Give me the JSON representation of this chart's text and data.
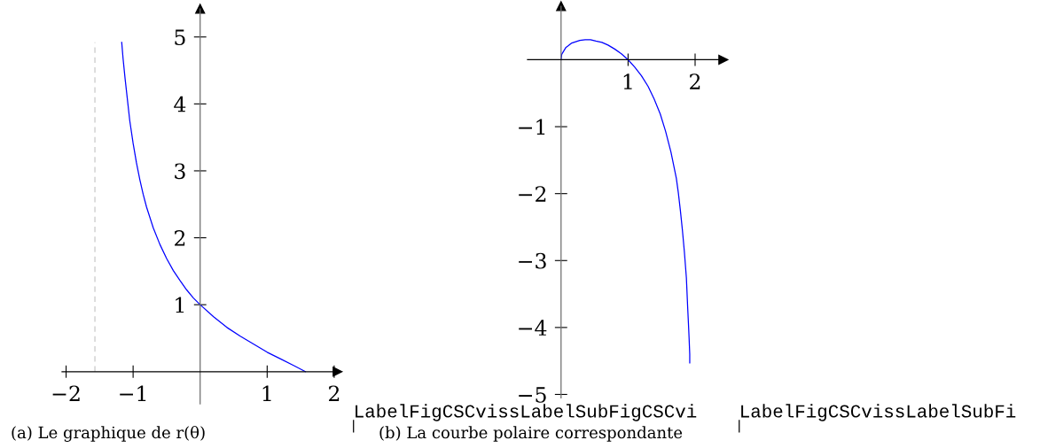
{
  "chart_data": [
    {
      "type": "line",
      "title": "(a) Le graphique de r(θ)",
      "annotations": [
        "LabelFigCSCvissLabelSubFigCSCvi"
      ],
      "x": [
        -1.17,
        -1.15,
        -1.12,
        -1.05,
        -1.0,
        -0.95,
        -0.9,
        -0.85,
        -0.8,
        -0.7,
        -0.6,
        -0.5,
        -0.4,
        -0.3,
        -0.2,
        -0.1,
        0,
        0.2,
        0.4,
        0.6,
        0.8,
        1.0,
        1.2,
        1.4,
        1.57
      ],
      "series": [
        {
          "color": "#0000ff",
          "values": [
            4.92,
            4.68,
            4.38,
            3.75,
            3.41,
            3.12,
            2.87,
            2.65,
            2.46,
            2.15,
            1.9,
            1.69,
            1.51,
            1.36,
            1.22,
            1.1,
            1.0,
            0.82,
            0.66,
            0.53,
            0.41,
            0.29,
            0.19,
            0.09,
            0
          ]
        }
      ],
      "xlim": [
        -2.06,
        2.05
      ],
      "ylim": [
        -0.48,
        5.42
      ],
      "xticks": [
        {
          "value": -2,
          "label": "−2"
        },
        {
          "value": -1,
          "label": "−1"
        },
        1,
        2
      ],
      "yticks": [
        1,
        2,
        3,
        4,
        5
      ],
      "ref_lines": [
        {
          "axis": "x",
          "value": -1.57,
          "color": "#c8c8c8",
          "line_style": "dashed"
        }
      ]
    },
    {
      "type": "line",
      "title": "(b) La courbe polaire correspondante",
      "annotations": [
        "LabelFigCSCvissLabelSubFi"
      ],
      "x": [
        0,
        0.01,
        0.04,
        0.07,
        0.11,
        0.16,
        0.22,
        0.28,
        0.36,
        0.44,
        0.52,
        0.61,
        0.7,
        0.8,
        0.9,
        1.0,
        1.1,
        1.2,
        1.3,
        1.39,
        1.48,
        1.56,
        1.64,
        1.72,
        1.75,
        1.78,
        1.81,
        1.84,
        1.87,
        1.89,
        1.9,
        1.91,
        1.92,
        1.92
      ],
      "series": [
        {
          "color": "#0000ff",
          "values": [
            0,
            0.08,
            0.13,
            0.18,
            0.21,
            0.25,
            0.27,
            0.29,
            0.3,
            0.3,
            0.28,
            0.26,
            0.22,
            0.16,
            0.09,
            0,
            -0.11,
            -0.24,
            -0.4,
            -0.59,
            -0.81,
            -1.07,
            -1.38,
            -1.77,
            -1.99,
            -2.25,
            -2.54,
            -2.87,
            -3.26,
            -3.72,
            -3.93,
            -4.15,
            -4.4,
            -4.53
          ]
        }
      ],
      "xlim": [
        -0.5,
        2.42
      ],
      "ylim": [
        -5.05,
        0.8
      ],
      "xticks": [
        1,
        2
      ],
      "yticks": [
        {
          "value": -1,
          "label": "−1"
        },
        {
          "value": -2,
          "label": "−2"
        },
        {
          "value": -3,
          "label": "−3"
        },
        {
          "value": -4,
          "label": "−4"
        },
        {
          "value": -5,
          "label": "−5"
        }
      ]
    }
  ]
}
